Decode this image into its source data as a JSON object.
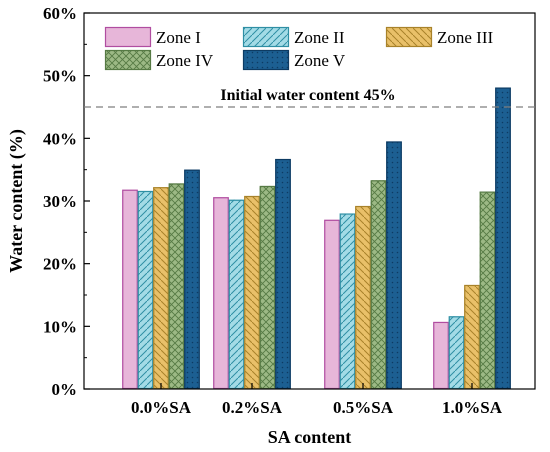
{
  "chart_data": {
    "type": "bar",
    "xlabel": "SA content",
    "ylabel": "Water content (%)",
    "ylim": [
      0,
      60
    ],
    "yticks": [
      0,
      10,
      20,
      30,
      40,
      50,
      60
    ],
    "ytick_labels": [
      "0%",
      "10%",
      "20%",
      "30%",
      "40%",
      "50%",
      "60%"
    ],
    "categories": [
      "0.0%SA",
      "0.2%SA",
      "0.5%SA",
      "1.0%SA"
    ],
    "series": [
      {
        "name": "Zone I",
        "values": [
          31.8,
          30.6,
          27.0,
          10.7
        ],
        "color": "#e7b6d9",
        "stroke": "#b04da0",
        "pattern": "solid"
      },
      {
        "name": "Zone II",
        "values": [
          31.6,
          30.2,
          28.0,
          11.6
        ],
        "color": "#a3dbe6",
        "stroke": "#2f8fa4",
        "pattern": "diagonal"
      },
      {
        "name": "Zone III",
        "values": [
          32.2,
          30.8,
          29.2,
          16.6
        ],
        "color": "#e9c069",
        "stroke": "#a8822a",
        "pattern": "backdiagonal"
      },
      {
        "name": "Zone IV",
        "values": [
          32.8,
          32.4,
          33.3,
          31.5
        ],
        "color": "#9cb985",
        "stroke": "#567a44",
        "pattern": "crosshatch"
      },
      {
        "name": "Zone V",
        "values": [
          35.0,
          36.7,
          39.5,
          48.1
        ],
        "color": "#1c5f92",
        "stroke": "#0d3b63",
        "pattern": "dots"
      }
    ],
    "reference_line": {
      "value": 45,
      "label": "Initial water content 45%",
      "style": "dashed",
      "color": "#7f7f7f"
    },
    "legend": {
      "placement": "top-left",
      "columns": 3
    },
    "grid": false
  }
}
